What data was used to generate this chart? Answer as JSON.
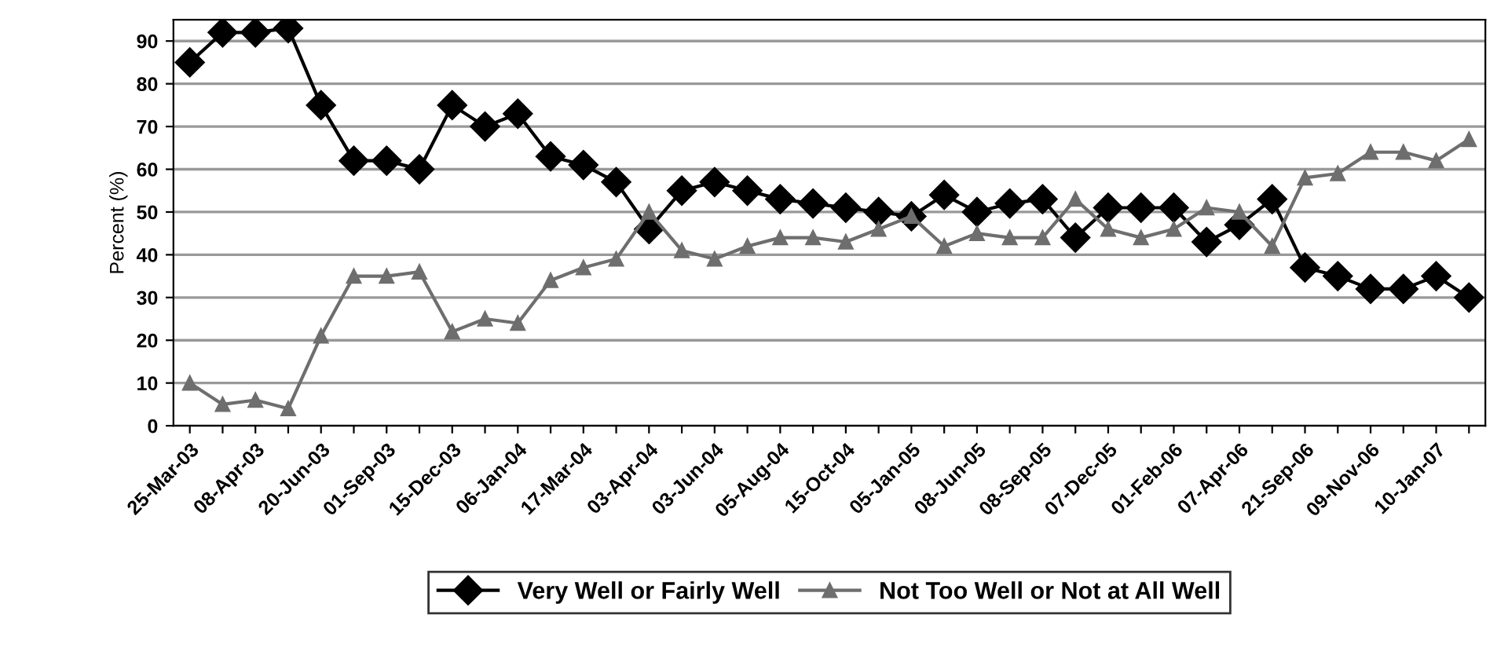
{
  "chart_data": {
    "type": "line",
    "ylabel": "Percent (%)",
    "categories": [
      "25-Mar-03",
      null,
      "08-Apr-03",
      null,
      "20-Jun-03",
      null,
      "01-Sep-03",
      null,
      "15-Dec-03",
      null,
      "06-Jan-04",
      null,
      "17-Mar-04",
      null,
      "03-Apr-04",
      null,
      "03-Jun-04",
      null,
      "05-Aug-04",
      null,
      "15-Oct-04",
      null,
      "05-Jan-05",
      null,
      "08-Jun-05",
      null,
      "08-Sep-05",
      null,
      "07-Dec-05",
      null,
      "01-Feb-06",
      null,
      "07-Apr-06",
      null,
      "21-Sep-06",
      null,
      "09-Nov-06",
      null,
      "10-Jan-07",
      null
    ],
    "series": [
      {
        "name": "Very Well or Fairly Well",
        "color": "#000000",
        "marker": "diamond",
        "values": [
          85,
          92,
          92,
          93,
          75,
          62,
          62,
          60,
          75,
          70,
          73,
          63,
          61,
          57,
          46,
          55,
          57,
          55,
          53,
          52,
          51,
          50,
          49,
          54,
          50,
          52,
          53,
          44,
          51,
          51,
          51,
          43,
          47,
          53,
          37,
          35,
          32,
          32,
          35,
          30
        ]
      },
      {
        "name": "Not Too Well or Not at All Well",
        "color": "#6e6e6e",
        "marker": "triangle",
        "values": [
          10,
          5,
          6,
          4,
          21,
          35,
          35,
          36,
          22,
          25,
          24,
          34,
          37,
          39,
          50,
          41,
          39,
          42,
          44,
          44,
          43,
          46,
          49,
          42,
          45,
          44,
          44,
          53,
          46,
          44,
          46,
          51,
          50,
          42,
          58,
          59,
          64,
          64,
          62,
          67
        ]
      }
    ],
    "ylim": [
      0,
      95
    ],
    "yticks": [
      0,
      10,
      20,
      30,
      40,
      50,
      60,
      70,
      80,
      90
    ],
    "grid": "y",
    "legend": "bottom",
    "line_style": "solid"
  }
}
